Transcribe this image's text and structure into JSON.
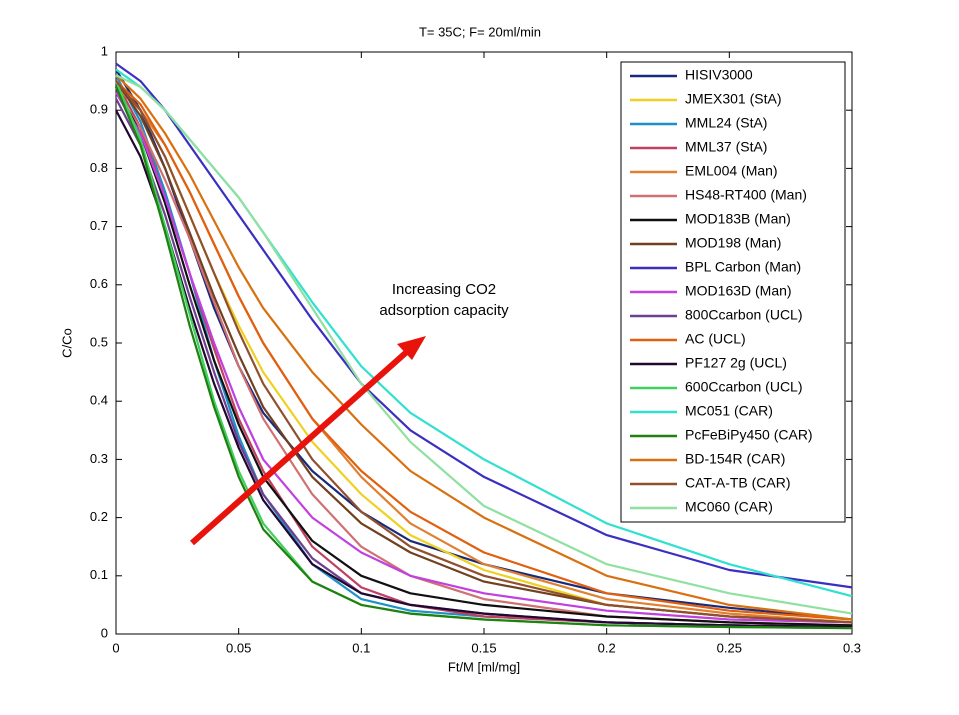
{
  "chart_data": {
    "type": "line",
    "title": "T= 35C; F= 20ml/min",
    "xlabel": "Ft/M [ml/mg]",
    "ylabel": "C/Co",
    "annotation": [
      "Increasing CO2",
      "adsorption capacity"
    ],
    "xlim": [
      0,
      0.3
    ],
    "ylim": [
      0,
      1
    ],
    "xticks": [
      0,
      0.05,
      0.1,
      0.15,
      0.2,
      0.25,
      0.3
    ],
    "yticks": [
      0,
      0.1,
      0.2,
      0.3,
      0.4,
      0.5,
      0.6,
      0.7,
      0.8,
      0.9,
      1
    ],
    "x": [
      0,
      0.01,
      0.02,
      0.03,
      0.04,
      0.05,
      0.06,
      0.08,
      0.1,
      0.12,
      0.15,
      0.2,
      0.25,
      0.3
    ],
    "series": [
      {
        "name": "HISIV3000",
        "color": "#1a2a7a",
        "values": [
          0.97,
          0.9,
          0.8,
          0.68,
          0.56,
          0.46,
          0.38,
          0.28,
          0.21,
          0.16,
          0.12,
          0.07,
          0.045,
          0.025
        ]
      },
      {
        "name": "JMEX301 (StA)",
        "color": "#f0d020",
        "values": [
          0.95,
          0.9,
          0.82,
          0.72,
          0.62,
          0.53,
          0.45,
          0.33,
          0.24,
          0.17,
          0.11,
          0.05,
          0.03,
          0.02
        ]
      },
      {
        "name": "MML24 (StA)",
        "color": "#1e90c8",
        "values": [
          0.96,
          0.88,
          0.76,
          0.62,
          0.47,
          0.34,
          0.24,
          0.12,
          0.06,
          0.04,
          0.03,
          0.02,
          0.015,
          0.012
        ]
      },
      {
        "name": "MML37 (StA)",
        "color": "#c04060",
        "values": [
          0.95,
          0.87,
          0.75,
          0.62,
          0.49,
          0.37,
          0.28,
          0.15,
          0.08,
          0.05,
          0.03,
          0.02,
          0.015,
          0.012
        ]
      },
      {
        "name": "EML004 (Man)",
        "color": "#e08030",
        "values": [
          0.94,
          0.9,
          0.84,
          0.76,
          0.67,
          0.58,
          0.5,
          0.37,
          0.27,
          0.19,
          0.12,
          0.06,
          0.035,
          0.02
        ]
      },
      {
        "name": "HS48-RT400 (Man)",
        "color": "#d07070",
        "values": [
          0.93,
          0.87,
          0.78,
          0.68,
          0.57,
          0.46,
          0.37,
          0.24,
          0.15,
          0.1,
          0.06,
          0.03,
          0.02,
          0.015
        ]
      },
      {
        "name": "MOD183B (Man)",
        "color": "#101010",
        "values": [
          0.94,
          0.86,
          0.74,
          0.6,
          0.47,
          0.36,
          0.27,
          0.16,
          0.1,
          0.07,
          0.05,
          0.03,
          0.02,
          0.015
        ]
      },
      {
        "name": "MOD198 (Man)",
        "color": "#704020",
        "values": [
          0.95,
          0.89,
          0.8,
          0.69,
          0.58,
          0.48,
          0.39,
          0.27,
          0.19,
          0.14,
          0.09,
          0.05,
          0.03,
          0.02
        ]
      },
      {
        "name": "BPL Carbon (Man)",
        "color": "#3a2fc0",
        "values": [
          0.98,
          0.95,
          0.9,
          0.84,
          0.78,
          0.72,
          0.66,
          0.54,
          0.43,
          0.35,
          0.27,
          0.17,
          0.11,
          0.08
        ]
      },
      {
        "name": "MOD163D (Man)",
        "color": "#c040e0",
        "values": [
          0.93,
          0.86,
          0.75,
          0.62,
          0.5,
          0.39,
          0.3,
          0.2,
          0.14,
          0.1,
          0.07,
          0.04,
          0.025,
          0.02
        ]
      },
      {
        "name": "800Ccarbon (UCL)",
        "color": "#704090",
        "values": [
          0.92,
          0.84,
          0.72,
          0.58,
          0.45,
          0.33,
          0.24,
          0.13,
          0.07,
          0.05,
          0.035,
          0.02,
          0.015,
          0.012
        ]
      },
      {
        "name": "AC (UCL)",
        "color": "#e06010",
        "values": [
          0.95,
          0.91,
          0.84,
          0.76,
          0.67,
          0.58,
          0.5,
          0.37,
          0.28,
          0.21,
          0.14,
          0.07,
          0.04,
          0.025
        ]
      },
      {
        "name": "PF127 2g (UCL)",
        "color": "#200830",
        "values": [
          0.9,
          0.82,
          0.7,
          0.56,
          0.43,
          0.32,
          0.23,
          0.12,
          0.07,
          0.05,
          0.035,
          0.02,
          0.015,
          0.012
        ]
      },
      {
        "name": "600Ccarbon (UCL)",
        "color": "#40d060",
        "values": [
          0.95,
          0.85,
          0.7,
          0.55,
          0.4,
          0.28,
          0.19,
          0.09,
          0.05,
          0.035,
          0.025,
          0.015,
          0.012,
          0.01
        ]
      },
      {
        "name": "MC051 (CAR)",
        "color": "#30e0d0",
        "values": [
          0.97,
          0.94,
          0.9,
          0.85,
          0.8,
          0.75,
          0.69,
          0.57,
          0.46,
          0.38,
          0.3,
          0.19,
          0.12,
          0.065
        ]
      },
      {
        "name": "PcFeBiPy450 (CAR)",
        "color": "#208010",
        "values": [
          0.94,
          0.84,
          0.69,
          0.53,
          0.39,
          0.27,
          0.18,
          0.09,
          0.05,
          0.035,
          0.025,
          0.015,
          0.012,
          0.01
        ]
      },
      {
        "name": "BD-154R (CAR)",
        "color": "#d87010",
        "values": [
          0.96,
          0.92,
          0.86,
          0.79,
          0.71,
          0.63,
          0.56,
          0.45,
          0.36,
          0.28,
          0.2,
          0.1,
          0.05,
          0.025
        ]
      },
      {
        "name": "CAT-A-TB (CAR)",
        "color": "#905030",
        "values": [
          0.95,
          0.9,
          0.82,
          0.72,
          0.62,
          0.52,
          0.43,
          0.3,
          0.21,
          0.15,
          0.1,
          0.05,
          0.03,
          0.02
        ]
      },
      {
        "name": "MC060 (CAR)",
        "color": "#90e0a0",
        "values": [
          0.96,
          0.94,
          0.9,
          0.85,
          0.8,
          0.75,
          0.69,
          0.56,
          0.43,
          0.33,
          0.22,
          0.12,
          0.07,
          0.035
        ]
      }
    ]
  }
}
